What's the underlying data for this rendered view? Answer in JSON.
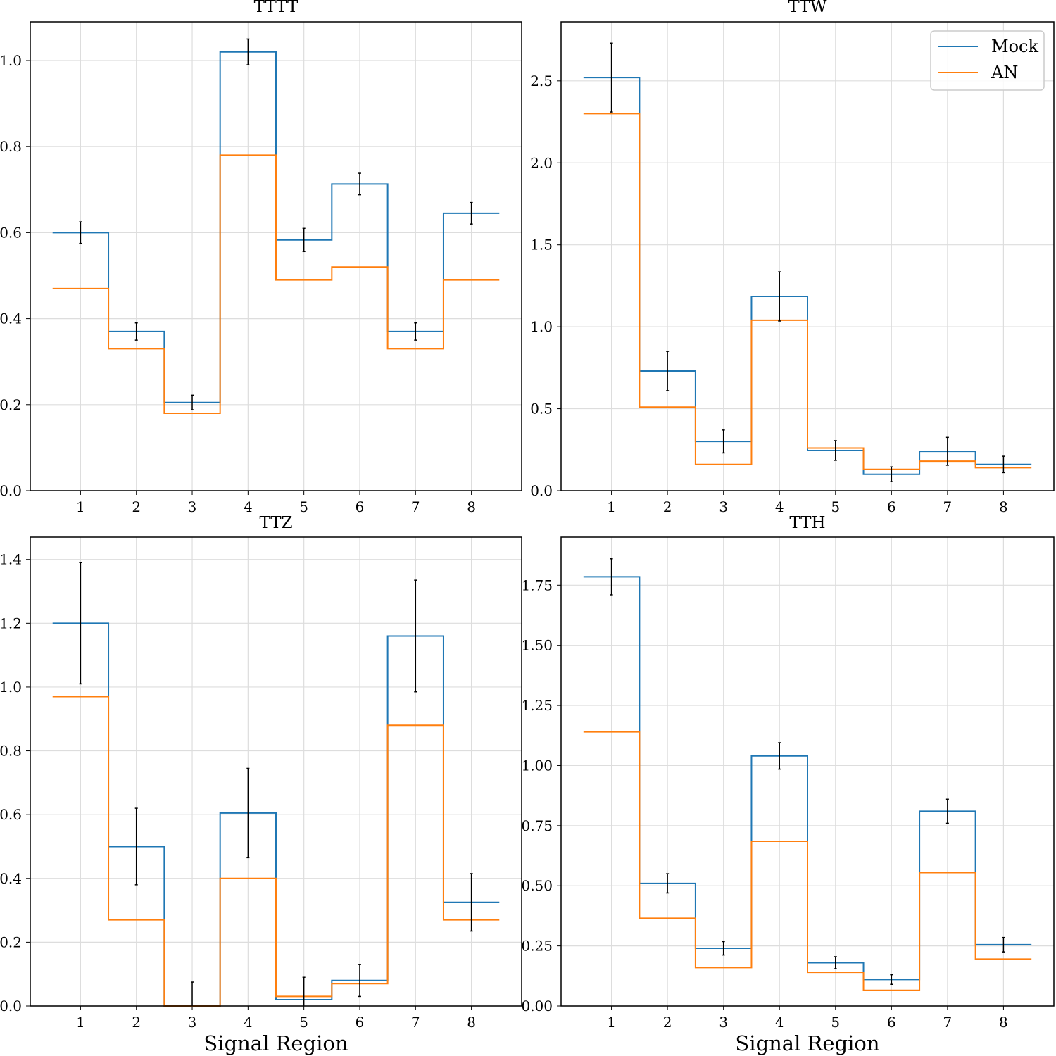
{
  "colors": {
    "mock": "#1f77b4",
    "an": "#ff7f0e",
    "grid": "#dddddd",
    "error": "#000000"
  },
  "legend": {
    "entries": [
      "Mock",
      "AN"
    ],
    "placement": "top-right"
  },
  "chart_data": [
    {
      "type": "step",
      "title": "TTTT",
      "xlabel": "",
      "ylabel": "",
      "categories": [
        "1",
        "2",
        "3",
        "4",
        "5",
        "6",
        "7",
        "8"
      ],
      "ylim": [
        0,
        1.09
      ],
      "yticks": [
        "0.0",
        "0.2",
        "0.4",
        "0.6",
        "0.8",
        "1.0"
      ],
      "grid": true,
      "series": [
        {
          "name": "Mock",
          "values": [
            0.6,
            0.37,
            0.205,
            1.02,
            0.583,
            0.713,
            0.37,
            0.645
          ],
          "errors": [
            0.025,
            0.02,
            0.017,
            0.03,
            0.027,
            0.025,
            0.02,
            0.025
          ]
        },
        {
          "name": "AN",
          "values": [
            0.47,
            0.33,
            0.18,
            0.78,
            0.49,
            0.52,
            0.33,
            0.49
          ]
        }
      ]
    },
    {
      "type": "step",
      "title": "TTW",
      "xlabel": "",
      "ylabel": "",
      "categories": [
        "1",
        "2",
        "3",
        "4",
        "5",
        "6",
        "7",
        "8"
      ],
      "ylim": [
        0,
        2.86
      ],
      "yticks": [
        "0.0",
        "0.5",
        "1.0",
        "1.5",
        "2.0",
        "2.5"
      ],
      "grid": true,
      "series": [
        {
          "name": "Mock",
          "values": [
            2.52,
            0.73,
            0.3,
            1.185,
            0.245,
            0.1,
            0.24,
            0.16
          ],
          "errors": [
            0.21,
            0.12,
            0.07,
            0.15,
            0.06,
            0.045,
            0.085,
            0.05
          ]
        },
        {
          "name": "AN",
          "values": [
            2.3,
            0.51,
            0.16,
            1.04,
            0.26,
            0.13,
            0.18,
            0.14
          ]
        }
      ]
    },
    {
      "type": "step",
      "title": "TTZ",
      "xlabel": "Signal Region",
      "ylabel": "",
      "categories": [
        "1",
        "2",
        "3",
        "4",
        "5",
        "6",
        "7",
        "8"
      ],
      "ylim": [
        0,
        1.47
      ],
      "yticks": [
        "0.0",
        "0.2",
        "0.4",
        "0.6",
        "0.8",
        "1.0",
        "1.2",
        "1.4"
      ],
      "grid": true,
      "series": [
        {
          "name": "Mock",
          "values": [
            1.2,
            0.5,
            0.0,
            0.605,
            0.02,
            0.08,
            1.16,
            0.325
          ],
          "errors": [
            0.19,
            0.12,
            0.075,
            0.14,
            0.07,
            0.05,
            0.175,
            0.09
          ]
        },
        {
          "name": "AN",
          "values": [
            0.97,
            0.27,
            0.0,
            0.4,
            0.03,
            0.07,
            0.88,
            0.27
          ]
        }
      ]
    },
    {
      "type": "step",
      "title": "TTH",
      "xlabel": "Signal Region",
      "ylabel": "",
      "categories": [
        "1",
        "2",
        "3",
        "4",
        "5",
        "6",
        "7",
        "8"
      ],
      "ylim": [
        0,
        1.95
      ],
      "yticks": [
        "0.00",
        "0.25",
        "0.50",
        "0.75",
        "1.00",
        "1.25",
        "1.50",
        "1.75"
      ],
      "grid": true,
      "series": [
        {
          "name": "Mock",
          "values": [
            1.785,
            0.51,
            0.24,
            1.04,
            0.18,
            0.11,
            0.81,
            0.255
          ],
          "errors": [
            0.075,
            0.04,
            0.028,
            0.055,
            0.025,
            0.02,
            0.05,
            0.03
          ]
        },
        {
          "name": "AN",
          "values": [
            1.14,
            0.365,
            0.16,
            0.685,
            0.14,
            0.065,
            0.555,
            0.195
          ]
        }
      ]
    }
  ]
}
